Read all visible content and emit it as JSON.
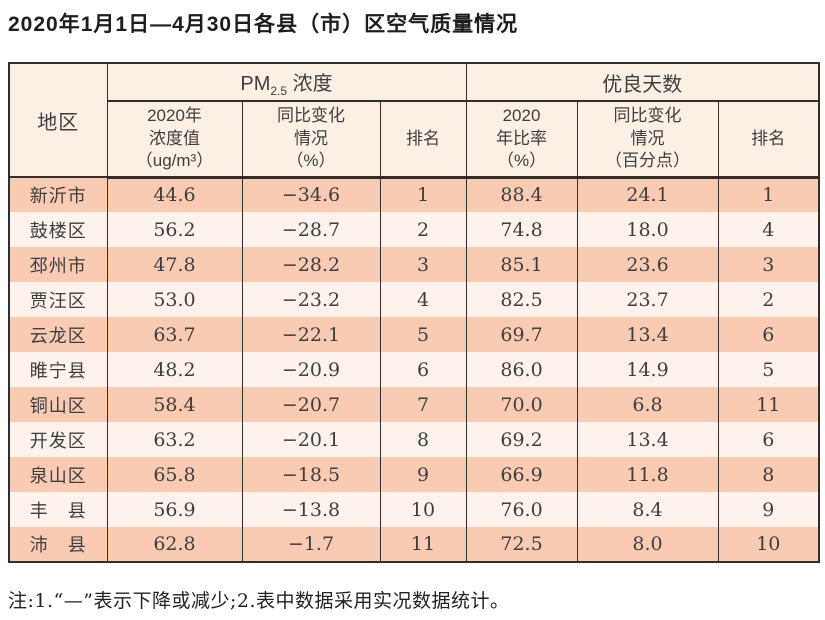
{
  "page": {
    "title": "2020年1月1日—4月30日各县（市）区空气质量情况",
    "note": "注:1.“—”表示下降或减少;2.表中数据采用实况数据统计。"
  },
  "colors": {
    "border-color": "#2f2f2f",
    "header-bg": "#fcefe4",
    "row-odd-bg": "#f8cbb2",
    "row-even-bg": "#fdf2ec",
    "title-color": "#1c1c1c",
    "body-text": "#3e3e3e"
  },
  "table": {
    "corner_header": "地区",
    "group1": {
      "prefix": "PM",
      "sub": "2.5",
      "suffix": " 浓度"
    },
    "group2": {
      "label": "优良天数"
    },
    "sub_headers": {
      "col2": "2020年\n浓度值\n（ug/m³）",
      "col3": "同比变化\n情况\n（%）",
      "col4": "排名",
      "col5": "2020\n年比率\n（%）",
      "col6": "同比变化\n情况\n（百分点）",
      "col7": "排名"
    },
    "rows": [
      [
        "新沂市",
        "44.6",
        "−34.6",
        "1",
        "88.4",
        "24.1",
        "1"
      ],
      [
        "鼓楼区",
        "56.2",
        "−28.7",
        "2",
        "74.8",
        "18.0",
        "4"
      ],
      [
        "邳州市",
        "47.8",
        "−28.2",
        "3",
        "85.1",
        "23.6",
        "3"
      ],
      [
        "贾汪区",
        "53.0",
        "−23.2",
        "4",
        "82.5",
        "23.7",
        "2"
      ],
      [
        "云龙区",
        "63.7",
        "−22.1",
        "5",
        "69.7",
        "13.4",
        "6"
      ],
      [
        "睢宁县",
        "48.2",
        "−20.9",
        "6",
        "86.0",
        "14.9",
        "5"
      ],
      [
        "铜山区",
        "58.4",
        "−20.7",
        "7",
        "70.0",
        "6.8",
        "11"
      ],
      [
        "开发区",
        "63.2",
        "−20.1",
        "8",
        "69.2",
        "13.4",
        "6"
      ],
      [
        "泉山区",
        "65.8",
        "−18.5",
        "9",
        "66.9",
        "11.8",
        "8"
      ],
      [
        "丰　县",
        "56.9",
        "−13.8",
        "10",
        "76.0",
        "8.4",
        "9"
      ],
      [
        "沛　县",
        "62.8",
        "−1.7",
        "11",
        "72.5",
        "8.0",
        "10"
      ]
    ]
  }
}
